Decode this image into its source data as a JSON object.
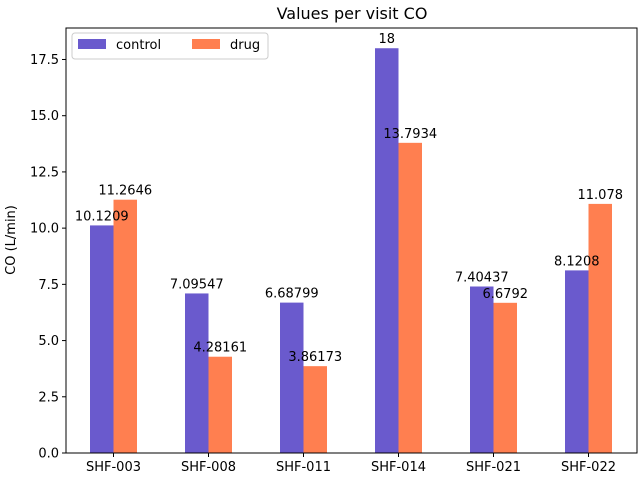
{
  "chart_data": {
    "type": "bar",
    "title": "Values per visit CO",
    "xlabel": "",
    "ylabel": "CO (L/min)",
    "categories": [
      "SHF-003",
      "SHF-008",
      "SHF-011",
      "SHF-014",
      "SHF-021",
      "SHF-022"
    ],
    "series": [
      {
        "name": "control",
        "color": "#6a5acd",
        "values": [
          10.1209,
          7.09547,
          6.68799,
          18,
          7.40437,
          8.1208
        ],
        "labels": [
          "10.1209",
          "7.09547",
          "6.68799",
          "18",
          "7.40437",
          "8.1208"
        ]
      },
      {
        "name": "drug",
        "color": "#ff7f50",
        "values": [
          11.2646,
          4.28161,
          3.86173,
          13.7934,
          6.6792,
          11.078
        ],
        "labels": [
          "11.2646",
          "4.28161",
          "3.86173",
          "13.7934",
          "6.6792",
          "11.078"
        ]
      }
    ],
    "yticks": [
      0.0,
      2.5,
      5.0,
      7.5,
      10.0,
      12.5,
      15.0,
      17.5
    ],
    "ytick_labels": [
      "0.0",
      "2.5",
      "5.0",
      "7.5",
      "10.0",
      "12.5",
      "15.0",
      "17.5"
    ],
    "ylim": [
      0,
      18.9
    ],
    "grid": false,
    "legend_position": "top-left",
    "legend_columns": 2
  }
}
